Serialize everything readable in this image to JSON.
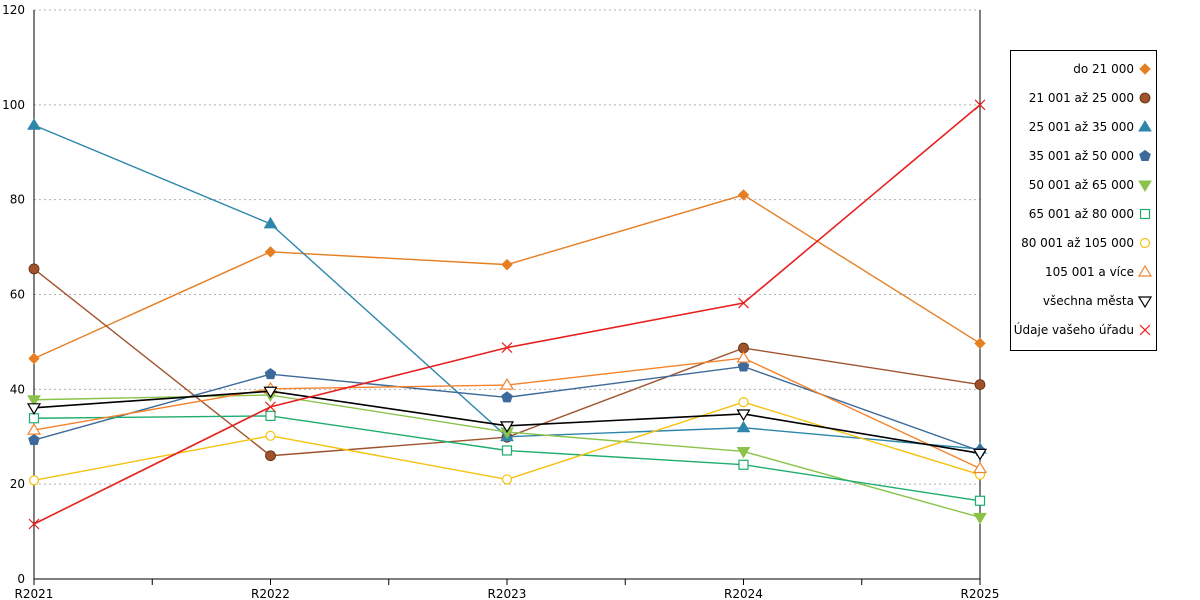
{
  "chart_data": {
    "type": "line",
    "title": "",
    "xlabel": "",
    "ylabel": "",
    "categories": [
      "R2021",
      "R2022",
      "R2023",
      "R2024",
      "R2025"
    ],
    "ylim": [
      0,
      120
    ],
    "yticks": [
      0,
      20,
      40,
      60,
      80,
      100,
      120
    ],
    "grid": "horizontal-dotted",
    "legend_position": "right",
    "series": [
      {
        "name": "do 21 000",
        "color": "#E67E22",
        "marker": "diamond-filled",
        "values": [
          46.5,
          69,
          66.3,
          81,
          49.7
        ]
      },
      {
        "name": "21 001 až 25 000",
        "color": "#A0522D",
        "marker": "circle-filled",
        "values": [
          65.4,
          26,
          29.9,
          48.7,
          41
        ]
      },
      {
        "name": "25 001 až 35 000",
        "color": "#2E86AB",
        "marker": "triangle-up-filled",
        "values": [
          95.7,
          74.9,
          30,
          31.9,
          27.4
        ]
      },
      {
        "name": "35 001 až 50 000",
        "color": "#3D6A9A",
        "marker": "pentagon-filled",
        "values": [
          29.3,
          43.2,
          38.3,
          44.8,
          27
        ]
      },
      {
        "name": "50 001 až 65 000",
        "color": "#8BC34A",
        "marker": "triangle-down-filled",
        "values": [
          37.8,
          38.8,
          31,
          26.9,
          13
        ]
      },
      {
        "name": "65 001 až 80 000",
        "color": "#1EAD6E",
        "marker": "square-open",
        "values": [
          33.9,
          34.4,
          27.1,
          24.1,
          16.5
        ]
      },
      {
        "name": "80 001 až 105 000",
        "color": "#F4C20D",
        "marker": "circle-open",
        "values": [
          20.8,
          30.2,
          21,
          37.3,
          22
        ]
      },
      {
        "name": "105 001 a více",
        "color": "#F5822A",
        "marker": "triangle-up-open",
        "values": [
          31.4,
          40.1,
          40.9,
          46.6,
          23.3
        ]
      },
      {
        "name": "všechna města",
        "color": "#000000",
        "marker": "triangle-down-open",
        "values": [
          36.1,
          39.6,
          32.3,
          34.8,
          26.5
        ]
      },
      {
        "name": "Údaje vašeho úřadu",
        "color": "#E82020",
        "marker": "x",
        "values": [
          11.6,
          36.3,
          48.8,
          58.2,
          100
        ]
      }
    ]
  }
}
